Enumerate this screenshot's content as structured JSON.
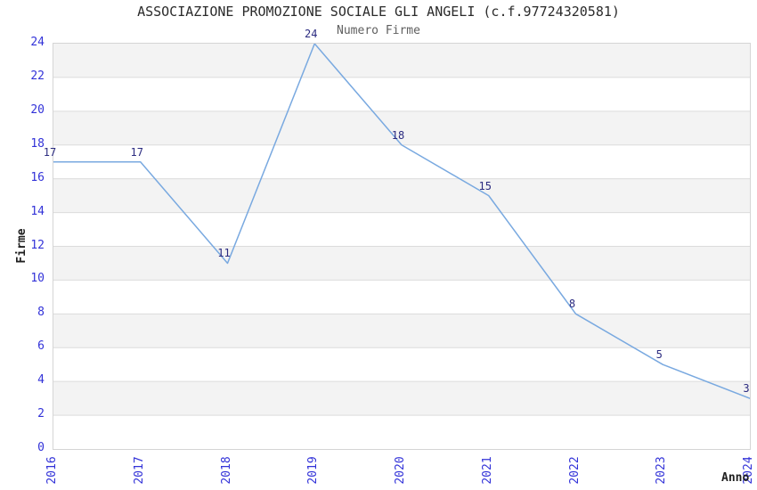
{
  "chart_data": {
    "type": "line",
    "title": "ASSOCIAZIONE PROMOZIONE SOCIALE GLI ANGELI (c.f.97724320581)",
    "subtitle": "Numero Firme",
    "xlabel": "Anno",
    "ylabel": "Firme",
    "categories": [
      "2016",
      "2017",
      "2018",
      "2019",
      "2020",
      "2021",
      "2022",
      "2023",
      "2024"
    ],
    "series": [
      {
        "name": "Numero Firme",
        "values": [
          17,
          17,
          11,
          24,
          18,
          15,
          8,
          5,
          3
        ]
      }
    ],
    "point_labels": [
      "17",
      "17",
      "11",
      "24",
      "18",
      "15",
      "8",
      "5",
      "3"
    ],
    "ylim": [
      0,
      24
    ],
    "ytick_step": 2,
    "yticks": [
      "0",
      "2",
      "4",
      "6",
      "8",
      "10",
      "12",
      "14",
      "16",
      "18",
      "20",
      "22",
      "24"
    ],
    "grid": "horizontal",
    "band_fill": "alternating-gray",
    "legend_position": "none",
    "colors": {
      "line": "#79a9e0",
      "band": "#f3f3f3",
      "gridline": "#dcdcdc",
      "axis_tick_label": "#3232d8",
      "point_label": "#2b2b80",
      "title": "#2b2b2b",
      "subtitle": "#5f5f5f",
      "axis_title": "#1f1f1f",
      "background": "#ffffff"
    }
  }
}
